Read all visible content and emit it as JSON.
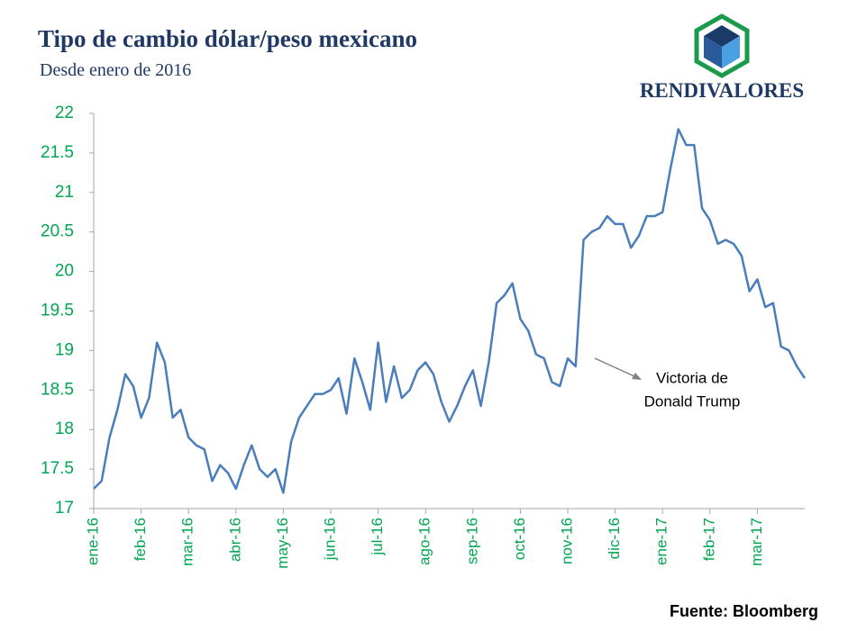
{
  "chart_data": {
    "type": "line",
    "title": "Tipo de cambio dólar/peso mexicano",
    "subtitle": "Desde enero de 2016",
    "brand": "RENDIVALORES",
    "annotation": [
      "Victoria de",
      "Donald Trump"
    ],
    "source": "Fuente: Bloomberg",
    "color": "#4a7ebb",
    "categories": [
      "ene-16",
      null,
      null,
      null,
      null,
      null,
      "feb-16",
      null,
      null,
      null,
      null,
      null,
      "mar-16",
      null,
      null,
      null,
      null,
      null,
      "abr-16",
      null,
      null,
      null,
      null,
      null,
      "may-16",
      null,
      null,
      null,
      null,
      null,
      "jun-16",
      null,
      null,
      null,
      null,
      null,
      "jul-16",
      null,
      null,
      null,
      null,
      null,
      "ago-16",
      null,
      null,
      null,
      null,
      null,
      "sep-16",
      null,
      null,
      null,
      null,
      null,
      "oct-16",
      null,
      null,
      null,
      null,
      null,
      "nov-16",
      null,
      null,
      null,
      null,
      null,
      "dic-16",
      null,
      null,
      null,
      null,
      null,
      "ene-17",
      null,
      null,
      null,
      null,
      null,
      "feb-17",
      null,
      null,
      null,
      null,
      null,
      "mar-17",
      null,
      null,
      null,
      null,
      null,
      null
    ],
    "values": [
      17.25,
      17.35,
      17.9,
      18.25,
      18.7,
      18.55,
      18.15,
      18.4,
      19.1,
      18.85,
      18.15,
      18.25,
      17.9,
      17.8,
      17.75,
      17.35,
      17.55,
      17.45,
      17.25,
      17.55,
      17.8,
      17.5,
      17.4,
      17.5,
      17.2,
      17.85,
      18.15,
      18.3,
      18.45,
      18.45,
      18.5,
      18.65,
      18.2,
      18.9,
      18.6,
      18.25,
      19.1,
      18.35,
      18.8,
      18.4,
      18.5,
      18.75,
      18.85,
      18.7,
      18.35,
      18.1,
      18.3,
      18.55,
      18.75,
      18.3,
      18.85,
      19.6,
      19.7,
      19.85,
      19.4,
      19.25,
      18.95,
      18.9,
      18.6,
      18.55,
      18.9,
      18.8,
      20.4,
      20.5,
      20.55,
      20.7,
      20.6,
      20.6,
      20.3,
      20.45,
      20.7,
      20.7,
      20.75,
      21.3,
      21.8,
      21.6,
      21.6,
      20.8,
      20.65,
      20.35,
      20.4,
      20.35,
      20.2,
      19.75,
      19.9,
      19.55,
      19.6,
      19.05,
      19.0,
      18.8,
      18.65
    ],
    "ylim": [
      17,
      22
    ],
    "yticks": [
      17,
      17.5,
      18,
      18.5,
      19,
      19.5,
      20,
      20.5,
      21,
      21.5,
      22
    ]
  }
}
